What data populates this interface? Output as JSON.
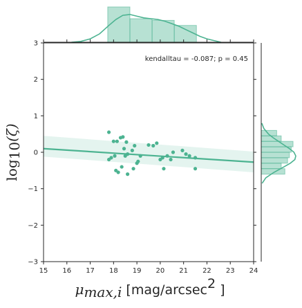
{
  "chart_data": {
    "type": "scatter",
    "annotation": "kendalltau = -0.087; p = 0.45",
    "xlabel": {
      "symbol": "μ",
      "subscript": "max,i",
      "unit_open": " [mag/arcsec",
      "unit_power": "2",
      "unit_close": " ]"
    },
    "ylabel": {
      "func": "log",
      "base": "10",
      "arg": "(ζ)"
    },
    "xlim": [
      15,
      24
    ],
    "ylim": [
      -3,
      3
    ],
    "xticks": [
      "15",
      "16",
      "17",
      "18",
      "19",
      "20",
      "21",
      "22",
      "23",
      "24"
    ],
    "yticks": [
      "-3",
      "-2",
      "-1",
      "0",
      "1",
      "2",
      "3"
    ],
    "points": [
      {
        "x": 17.8,
        "y": 0.55
      },
      {
        "x": 17.8,
        "y": -0.2
      },
      {
        "x": 17.9,
        "y": -0.15
      },
      {
        "x": 18.0,
        "y": 0.3
      },
      {
        "x": 18.05,
        "y": -0.1
      },
      {
        "x": 18.1,
        "y": -0.5
      },
      {
        "x": 18.15,
        "y": 0.3
      },
      {
        "x": 18.2,
        "y": -0.55
      },
      {
        "x": 18.3,
        "y": 0.4
      },
      {
        "x": 18.35,
        "y": -0.4
      },
      {
        "x": 18.4,
        "y": 0.42
      },
      {
        "x": 18.45,
        "y": 0.1
      },
      {
        "x": 18.5,
        "y": -0.1
      },
      {
        "x": 18.55,
        "y": 0.28
      },
      {
        "x": 18.6,
        "y": -0.6
      },
      {
        "x": 18.6,
        "y": -0.05
      },
      {
        "x": 18.8,
        "y": 0.05
      },
      {
        "x": 18.85,
        "y": -0.45
      },
      {
        "x": 18.9,
        "y": 0.18
      },
      {
        "x": 19.0,
        "y": -0.3
      },
      {
        "x": 19.05,
        "y": -0.25
      },
      {
        "x": 19.15,
        "y": -0.1
      },
      {
        "x": 19.5,
        "y": 0.2
      },
      {
        "x": 19.7,
        "y": 0.18
      },
      {
        "x": 19.85,
        "y": 0.25
      },
      {
        "x": 20.0,
        "y": -0.2
      },
      {
        "x": 20.1,
        "y": -0.15
      },
      {
        "x": 20.15,
        "y": -0.45
      },
      {
        "x": 20.3,
        "y": -0.1
      },
      {
        "x": 20.45,
        "y": -0.2
      },
      {
        "x": 20.55,
        "y": 0.0
      },
      {
        "x": 20.95,
        "y": 0.05
      },
      {
        "x": 21.1,
        "y": -0.05
      },
      {
        "x": 21.25,
        "y": -0.1
      },
      {
        "x": 21.5,
        "y": -0.15
      },
      {
        "x": 21.5,
        "y": -0.45
      }
    ],
    "regression": {
      "x": [
        15,
        24
      ],
      "y": [
        0.1,
        -0.27
      ],
      "ci_lower": [
        -0.12,
        -0.55
      ],
      "ci_upper": [
        0.45,
        0.02
      ]
    },
    "top_hist": {
      "bins": [
        17.75,
        18.7,
        19.65,
        20.6,
        21.55
      ],
      "densities": [
        0.42,
        0.28,
        0.26,
        0.2
      ]
    },
    "top_kde": {
      "x": [
        16.2,
        16.6,
        17.0,
        17.4,
        17.8,
        18.1,
        18.4,
        18.7,
        19.0,
        19.3,
        19.6,
        19.9,
        20.2,
        20.5,
        20.8,
        21.1,
        21.4,
        21.7,
        22.0,
        22.3,
        22.6
      ],
      "density": [
        0.0,
        0.01,
        0.04,
        0.1,
        0.2,
        0.27,
        0.32,
        0.33,
        0.31,
        0.29,
        0.28,
        0.27,
        0.25,
        0.22,
        0.19,
        0.15,
        0.11,
        0.07,
        0.04,
        0.02,
        0.0
      ]
    },
    "right_hist": {
      "bins": [
        -0.6,
        -0.45,
        -0.3,
        -0.15,
        0.0,
        0.15,
        0.3,
        0.45,
        0.6
      ],
      "densities": [
        1.3,
        1.1,
        1.45,
        1.55,
        1.65,
        1.75,
        1.1,
        0.85
      ]
    },
    "right_kde": {
      "y": [
        -0.85,
        -0.7,
        -0.55,
        -0.4,
        -0.3,
        -0.2,
        -0.1,
        0.0,
        0.1,
        0.2,
        0.3,
        0.4,
        0.5,
        0.65,
        0.8
      ],
      "density": [
        0.05,
        0.25,
        0.7,
        1.25,
        1.6,
        1.85,
        1.9,
        1.8,
        1.55,
        1.25,
        0.95,
        0.65,
        0.4,
        0.15,
        0.03
      ]
    },
    "colors": {
      "main": "#4cb391",
      "hist_fill": "#4cb391",
      "ci_fill": "#4cb391",
      "axis": "#262626"
    }
  }
}
